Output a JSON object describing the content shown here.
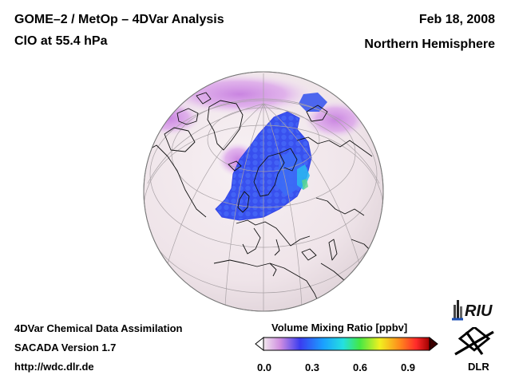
{
  "header": {
    "title_line1": "GOME–2 / MetOp – 4DVar Analysis",
    "title_line2": "ClO at 55.4 hPa",
    "date": "Feb 18, 2008",
    "region": "Northern Hemisphere"
  },
  "footer": {
    "line1": "4DVar Chemical Data Assimilation",
    "line2": "SACADA Version 1.7",
    "line3": "http://wdc.dlr.de"
  },
  "colorbar": {
    "title": "Volume Mixing Ratio [ppbv]",
    "ticks": [
      "0.0",
      "0.3",
      "0.6",
      "0.9"
    ],
    "colors": [
      "#f2e8ee",
      "#d08ee0",
      "#3a3cf0",
      "#1aa0ff",
      "#24e0e0",
      "#44e844",
      "#f0f020",
      "#ff8a1c",
      "#ff2a2a",
      "#a00000"
    ]
  },
  "logos": {
    "riu": "RIU",
    "dlr": "DLR"
  },
  "colors": {
    "globe_background": "#f2e8ec",
    "coastline": "#111111",
    "graticule": "#aaaaaa",
    "clo_low": "#d38de6",
    "clo_high": "#2a36e8"
  }
}
